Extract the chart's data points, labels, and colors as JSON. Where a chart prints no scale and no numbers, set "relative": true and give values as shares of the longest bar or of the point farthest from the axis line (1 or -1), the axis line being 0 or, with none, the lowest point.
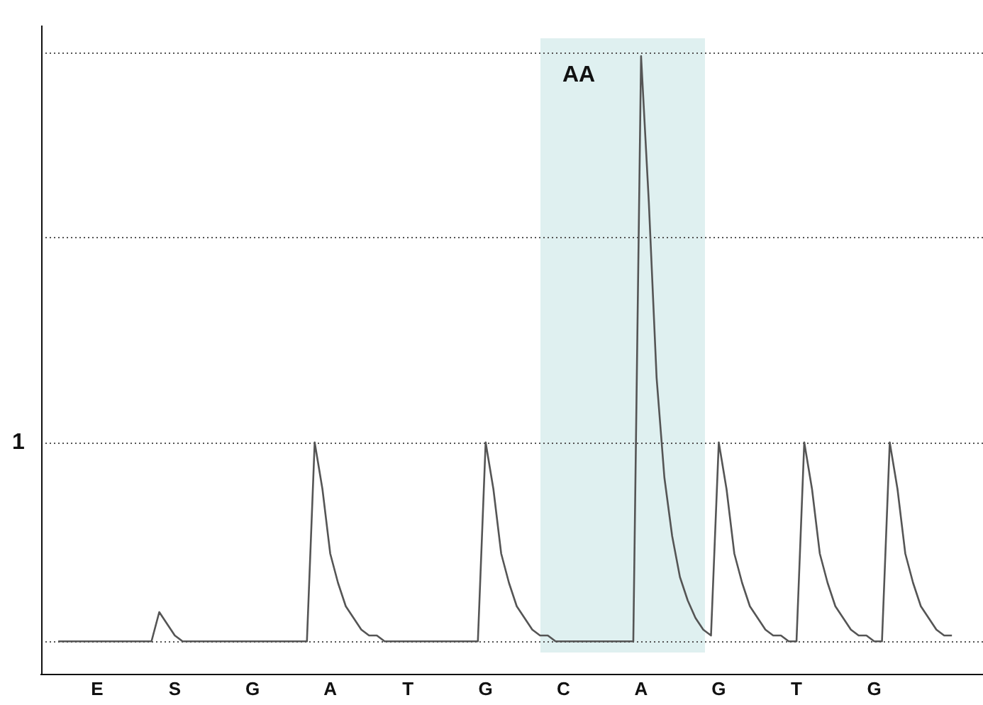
{
  "chart_data": {
    "type": "line",
    "relative": true,
    "categories": [
      null,
      null,
      null,
      null,
      null,
      "E",
      null,
      null,
      null,
      null,
      null,
      null,
      null,
      null,
      null,
      "S",
      null,
      null,
      null,
      null,
      null,
      null,
      null,
      null,
      null,
      "G",
      null,
      null,
      null,
      null,
      null,
      null,
      null,
      null,
      null,
      "A",
      null,
      null,
      null,
      null,
      null,
      null,
      null,
      null,
      null,
      "T",
      null,
      null,
      null,
      null,
      null,
      null,
      null,
      null,
      null,
      "G",
      null,
      null,
      null,
      null,
      null,
      null,
      null,
      null,
      null,
      "C",
      null,
      null,
      null,
      null,
      null,
      null,
      null,
      null,
      null,
      "A",
      null,
      null,
      null,
      null,
      null,
      null,
      null,
      null,
      null,
      "G",
      null,
      null,
      null,
      null,
      null,
      null,
      null,
      null,
      null,
      "T",
      null,
      null,
      null,
      null,
      null,
      null,
      null,
      null,
      null,
      "G",
      null,
      null,
      null,
      null,
      null,
      null,
      null,
      null,
      null,
      null
    ],
    "series": [
      {
        "color": "#555555",
        "values": [
          0,
          0,
          0,
          0,
          0,
          0,
          0,
          0,
          0,
          0,
          0,
          0,
          0,
          0.05,
          0.03,
          0.01,
          0,
          0,
          0,
          0,
          0,
          0,
          0,
          0,
          0,
          0,
          0,
          0,
          0,
          0,
          0,
          0,
          0,
          0.34,
          0.26,
          0.15,
          0.1,
          0.06,
          0.04,
          0.02,
          0.01,
          0.01,
          0,
          0,
          0,
          0,
          0,
          0,
          0,
          0,
          0,
          0,
          0,
          0,
          0,
          0.34,
          0.26,
          0.15,
          0.1,
          0.06,
          0.04,
          0.02,
          0.01,
          0.01,
          0,
          0,
          0,
          0,
          0,
          0,
          0,
          0,
          0,
          0,
          0,
          1,
          0.75,
          0.45,
          0.28,
          0.18,
          0.11,
          0.07,
          0.04,
          0.02,
          0.01,
          0.34,
          0.26,
          0.15,
          0.1,
          0.06,
          0.04,
          0.02,
          0.01,
          0.01,
          0,
          0,
          0.34,
          0.26,
          0.15,
          0.1,
          0.06,
          0.04,
          0.02,
          0.01,
          0.01,
          0,
          0,
          0.34,
          0.26,
          0.15,
          0.1,
          0.06,
          0.04,
          0.02,
          0.01,
          0.01
        ]
      }
    ],
    "ref_lines": [
      {
        "axis": "y",
        "value": 0,
        "line_style": "dotted",
        "color": "#555555"
      },
      {
        "axis": "y",
        "value": 0.34,
        "line_style": "dotted",
        "color": "#555555"
      },
      {
        "axis": "y",
        "value": 0.69,
        "line_style": "dotted",
        "color": "#555555"
      },
      {
        "axis": "y",
        "value": 1.007,
        "line_style": "dotted",
        "color": "#555555"
      }
    ],
    "annotations": [
      "1",
      "AA"
    ],
    "legend": false,
    "marker": "none",
    "line_style": "solid"
  }
}
